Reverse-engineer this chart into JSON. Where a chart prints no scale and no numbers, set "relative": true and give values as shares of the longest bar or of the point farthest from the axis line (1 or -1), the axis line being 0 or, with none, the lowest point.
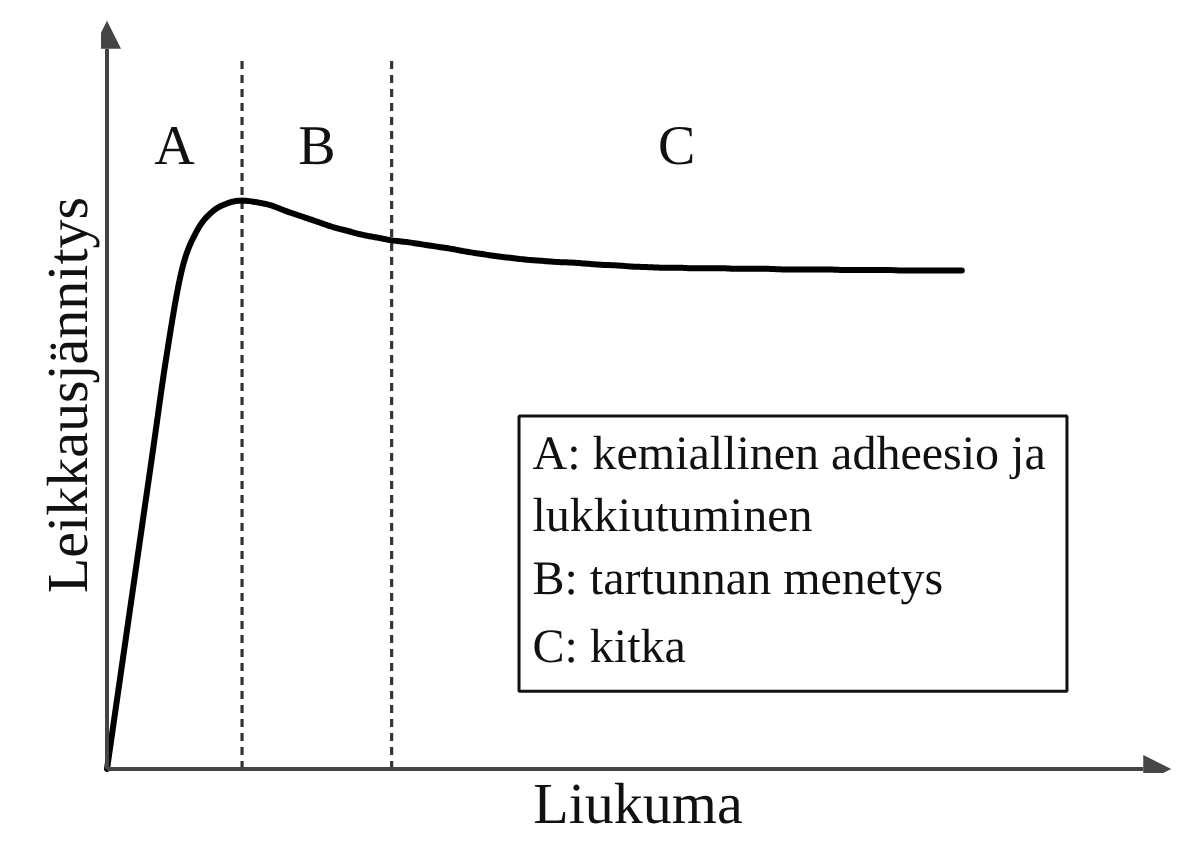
{
  "chart_data": {
    "type": "line",
    "relative": true,
    "xlabel": "Liukuma",
    "ylabel": "Leikkausjännitys",
    "color": "#000000",
    "categories": [
      null,
      null,
      null,
      null,
      null,
      null,
      null,
      null,
      null,
      null,
      null,
      null,
      null,
      null,
      null,
      null,
      null,
      null,
      null,
      null,
      null,
      null,
      null,
      null,
      null,
      null,
      null,
      null,
      null,
      null,
      null,
      null,
      null,
      null,
      null,
      null,
      null,
      null,
      null,
      null,
      null,
      null,
      null,
      null,
      null,
      null,
      null,
      null,
      null,
      null,
      null,
      null,
      null,
      null,
      null,
      null,
      null,
      null
    ],
    "values": [
      0,
      0.183,
      0.366,
      0.549,
      0.732,
      0.879,
      0.947,
      0.98,
      0.995,
      1,
      0.997,
      0.991,
      0.981,
      0.972,
      0.963,
      0.954,
      0.947,
      0.94,
      0.935,
      0.93,
      0.927,
      0.923,
      0.919,
      0.915,
      0.91,
      0.906,
      0.902,
      0.899,
      0.896,
      0.894,
      0.892,
      0.891,
      0.889,
      0.887,
      0.886,
      0.884,
      0.883,
      0.882,
      0.882,
      0.881,
      0.881,
      0.881,
      0.88,
      0.88,
      0.88,
      0.879,
      0.879,
      0.879,
      0.879,
      0.878,
      0.878,
      0.878,
      0.878,
      0.877,
      0.877,
      0.877,
      0.877,
      0.877
    ],
    "annotations": [
      "A",
      "B",
      "C",
      "A: kemiallinen adheesio ja lukkiutuminen",
      "B: tartunnan menetys",
      "C: kitka"
    ]
  }
}
